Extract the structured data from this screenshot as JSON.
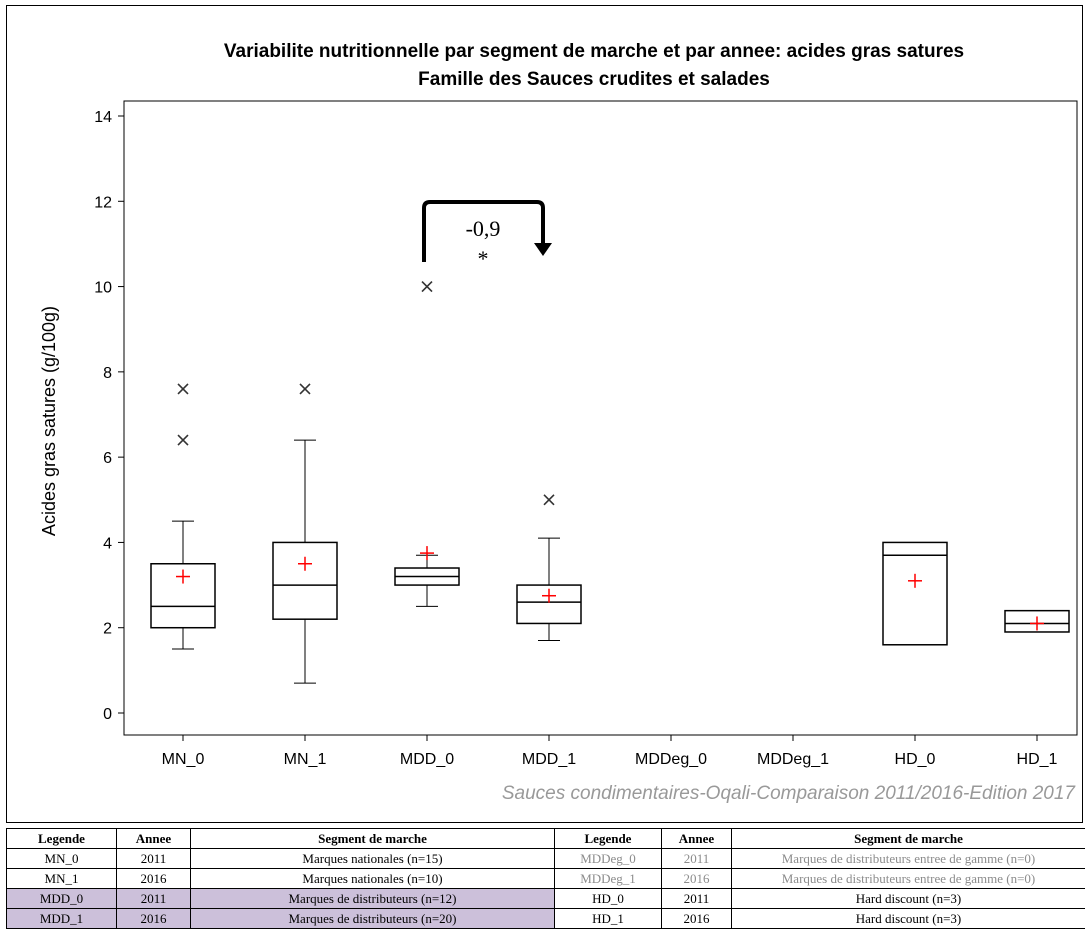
{
  "chart_data": {
    "type": "box",
    "title": "Variabilite nutritionnelle par segment de marche et par annee: acides gras satures",
    "subtitle": "Famille des Sauces crudites et salades",
    "ylabel": "Acides gras satures (g/100g)",
    "xlabel": "",
    "ylim": [
      0,
      14
    ],
    "yticks": [
      0,
      2,
      4,
      6,
      8,
      10,
      12,
      14
    ],
    "categories": [
      "MN_0",
      "MN_1",
      "MDD_0",
      "MDD_1",
      "MDDeg_0",
      "MDDeg_1",
      "HD_0",
      "HD_1"
    ],
    "boxes": [
      {
        "category": "MN_0",
        "whisker_low": 1.5,
        "q1": 2.0,
        "median": 2.5,
        "q3": 3.5,
        "whisker_high": 4.5,
        "mean": 3.2,
        "outliers": [
          6.4,
          7.6
        ]
      },
      {
        "category": "MN_1",
        "whisker_low": 0.7,
        "q1": 2.2,
        "median": 3.0,
        "q3": 4.0,
        "whisker_high": 6.4,
        "mean": 3.5,
        "outliers": [
          7.6
        ]
      },
      {
        "category": "MDD_0",
        "whisker_low": 2.5,
        "q1": 3.0,
        "median": 3.2,
        "q3": 3.4,
        "whisker_high": 3.7,
        "mean": 3.75,
        "outliers": [
          10.0
        ]
      },
      {
        "category": "MDD_1",
        "whisker_low": 1.7,
        "q1": 2.1,
        "median": 2.6,
        "q3": 3.0,
        "whisker_high": 4.1,
        "mean": 2.75,
        "outliers": [
          5.0
        ]
      },
      {
        "category": "HD_0",
        "whisker_low": 1.6,
        "q1": 1.6,
        "median": 3.7,
        "q3": 4.0,
        "whisker_high": 4.0,
        "mean": 3.1,
        "outliers": []
      },
      {
        "category": "HD_1",
        "whisker_low": 1.9,
        "q1": 1.9,
        "median": 2.1,
        "q3": 2.4,
        "whisker_high": 2.4,
        "mean": 2.1,
        "outliers": []
      }
    ],
    "annotation": {
      "from": "MDD_0",
      "to": "MDD_1",
      "label": "-0,9",
      "significance": "*"
    },
    "footnote": "Sauces condimentaires-Oqali-Comparaison 2011/2016-Edition 2017",
    "grid": false,
    "colors": {
      "box": "#000000",
      "mean_marker": "#ff0000",
      "outlier": "#333333",
      "highlight_row": "#ccc0da",
      "muted_text": "#8c8c8c"
    }
  },
  "legend_table": {
    "headers": [
      "Legende",
      "Annee",
      "Segment de marche",
      "Legende",
      "Annee",
      "Segment de marche"
    ],
    "rows": [
      [
        {
          "legende": "MN_0",
          "annee": "2011",
          "segment": "Marques nationales (n=15)"
        },
        {
          "legende": "MDDeg_0",
          "annee": "2011",
          "segment": "Marques de distributeurs entree de gamme (n=0)"
        }
      ],
      [
        {
          "legende": "MN_1",
          "annee": "2016",
          "segment": "Marques nationales (n=10)"
        },
        {
          "legende": "MDDeg_1",
          "annee": "2016",
          "segment": "Marques de distributeurs entree de gamme (n=0)"
        }
      ],
      [
        {
          "legende": "MDD_0",
          "annee": "2011",
          "segment": "Marques de distributeurs (n=12)"
        },
        {
          "legende": "HD_0",
          "annee": "2011",
          "segment": "Hard discount (n=3)"
        }
      ],
      [
        {
          "legende": "MDD_1",
          "annee": "2016",
          "segment": "Marques de distributeurs (n=20)"
        },
        {
          "legende": "HD_1",
          "annee": "2016",
          "segment": "Hard discount (n=3)"
        }
      ]
    ]
  }
}
